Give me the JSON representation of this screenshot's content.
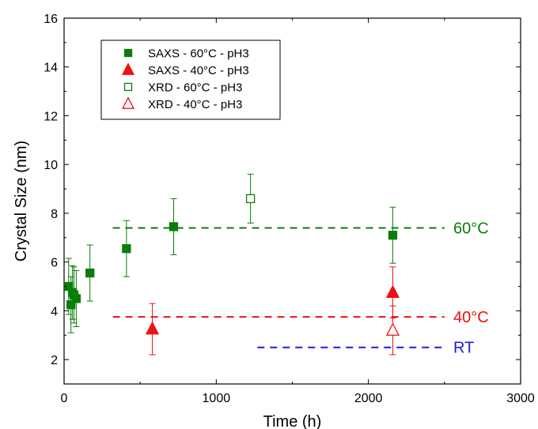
{
  "chart_data": {
    "type": "scatter",
    "title": "",
    "xlabel": "Time (h)",
    "ylabel": "Crystal Size (nm)",
    "xlim": [
      0,
      3000
    ],
    "ylim": [
      1,
      16
    ],
    "x_ticks": [
      0,
      1000,
      2000,
      3000
    ],
    "y_ticks": [
      2,
      4,
      6,
      8,
      10,
      12,
      14,
      16
    ],
    "grid": false,
    "legend_position": "top-left",
    "series": [
      {
        "name": "SAXS - 60°C - pH3",
        "color": "#0a7d0a",
        "marker": "square-filled",
        "points": [
          {
            "x": 30,
            "y": 5.0,
            "err": 1.15
          },
          {
            "x": 45,
            "y": 4.25,
            "err": 1.15
          },
          {
            "x": 55,
            "y": 4.75,
            "err": 1.1
          },
          {
            "x": 65,
            "y": 4.65,
            "err": 1.15
          },
          {
            "x": 80,
            "y": 4.5,
            "err": 1.15
          },
          {
            "x": 170,
            "y": 5.55,
            "err": 1.15
          },
          {
            "x": 410,
            "y": 6.55,
            "err": 1.15
          },
          {
            "x": 720,
            "y": 7.45,
            "err": 1.15
          },
          {
            "x": 2160,
            "y": 7.1,
            "err": 1.15
          }
        ]
      },
      {
        "name": "SAXS - 40°C - pH3",
        "color": "#ee1111",
        "marker": "triangle-filled",
        "points": [
          {
            "x": 580,
            "y": 3.25,
            "err": 1.05
          },
          {
            "x": 2160,
            "y": 4.75,
            "err": 1.05
          }
        ]
      },
      {
        "name": "XRD - 60°C - pH3",
        "color": "#0a7d0a",
        "marker": "square-open",
        "points": [
          {
            "x": 1225,
            "y": 8.6,
            "err": 1.0
          }
        ]
      },
      {
        "name": "XRD - 40°C - pH3",
        "color": "#ee1111",
        "marker": "triangle-open",
        "points": [
          {
            "x": 2160,
            "y": 3.2,
            "err": 1.0
          }
        ]
      }
    ],
    "reference_lines": [
      {
        "label": "60°C",
        "y": 7.4,
        "x_start": 320,
        "x_end": 2500,
        "color": "#0a7d0a"
      },
      {
        "label": "40°C",
        "y": 3.75,
        "x_start": 320,
        "x_end": 2500,
        "color": "#ee1111"
      },
      {
        "label": "RT",
        "y": 2.5,
        "x_start": 1270,
        "x_end": 2500,
        "color": "#1a1aee"
      }
    ]
  }
}
